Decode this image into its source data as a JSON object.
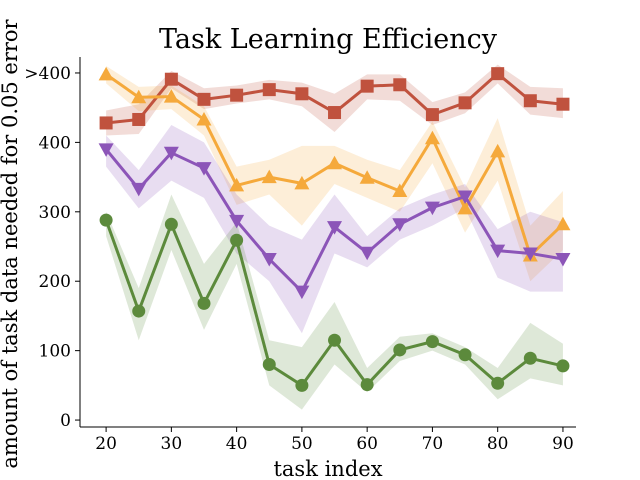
{
  "chart_data": {
    "type": "line",
    "title": "Task Learning Efficiency",
    "xlabel": "task index",
    "ylabel": "amount of task data needed for 0.05 error",
    "xlim": [
      16,
      92
    ],
    "ylim": [
      -10,
      523
    ],
    "xticks": [
      20,
      30,
      40,
      50,
      60,
      70,
      80,
      90
    ],
    "yticks": [
      {
        "value": 0,
        "label": "0"
      },
      {
        "value": 100,
        "label": "100"
      },
      {
        "value": 200,
        "label": "200"
      },
      {
        "value": 300,
        "label": "300"
      },
      {
        "value": 400,
        "label": "400"
      },
      {
        "value": 500,
        "label": ">400"
      }
    ],
    "x": [
      20,
      25,
      30,
      35,
      40,
      45,
      50,
      55,
      60,
      65,
      70,
      75,
      80,
      85,
      90
    ],
    "series": [
      {
        "name": "red-squares",
        "color": "#c0523e",
        "marker": "square",
        "values": [
          428,
          433,
          491,
          462,
          468,
          476,
          470,
          443,
          481,
          483,
          440,
          457,
          499,
          460,
          455
        ],
        "lower": [
          410,
          412,
          478,
          448,
          456,
          462,
          452,
          415,
          462,
          460,
          425,
          442,
          485,
          440,
          435
        ],
        "upper": [
          446,
          455,
          503,
          478,
          482,
          490,
          486,
          470,
          498,
          498,
          458,
          472,
          512,
          480,
          478
        ]
      },
      {
        "name": "orange-triangles",
        "color": "#f5a93b",
        "marker": "triangle-up",
        "values": [
          498,
          465,
          466,
          433,
          338,
          350,
          341,
          370,
          349,
          330,
          406,
          305,
          387,
          237,
          282
        ],
        "lower": [
          485,
          445,
          448,
          410,
          310,
          325,
          280,
          340,
          320,
          300,
          370,
          270,
          345,
          200,
          245
        ],
        "upper": [
          510,
          480,
          482,
          452,
          365,
          375,
          395,
          395,
          375,
          360,
          430,
          335,
          435,
          280,
          330
        ]
      },
      {
        "name": "purple-triangles",
        "color": "#8c55b8",
        "marker": "triangle-down",
        "values": [
          390,
          333,
          385,
          363,
          287,
          232,
          185,
          278,
          241,
          282,
          306,
          322,
          244,
          240,
          232
        ],
        "lower": [
          365,
          305,
          345,
          320,
          240,
          200,
          125,
          240,
          220,
          260,
          280,
          305,
          205,
          185,
          185
        ],
        "upper": [
          410,
          360,
          425,
          400,
          325,
          280,
          260,
          325,
          265,
          305,
          325,
          340,
          275,
          300,
          285
        ]
      },
      {
        "name": "green-circles",
        "color": "#5c8a3c",
        "marker": "circle",
        "values": [
          288,
          157,
          282,
          168,
          259,
          80,
          50,
          115,
          51,
          101,
          113,
          94,
          53,
          89,
          78
        ],
        "lower": [
          265,
          115,
          245,
          130,
          225,
          50,
          15,
          80,
          40,
          85,
          100,
          80,
          30,
          60,
          50
        ],
        "upper": [
          300,
          190,
          325,
          225,
          285,
          115,
          105,
          170,
          75,
          120,
          125,
          105,
          75,
          140,
          110
        ]
      }
    ]
  }
}
